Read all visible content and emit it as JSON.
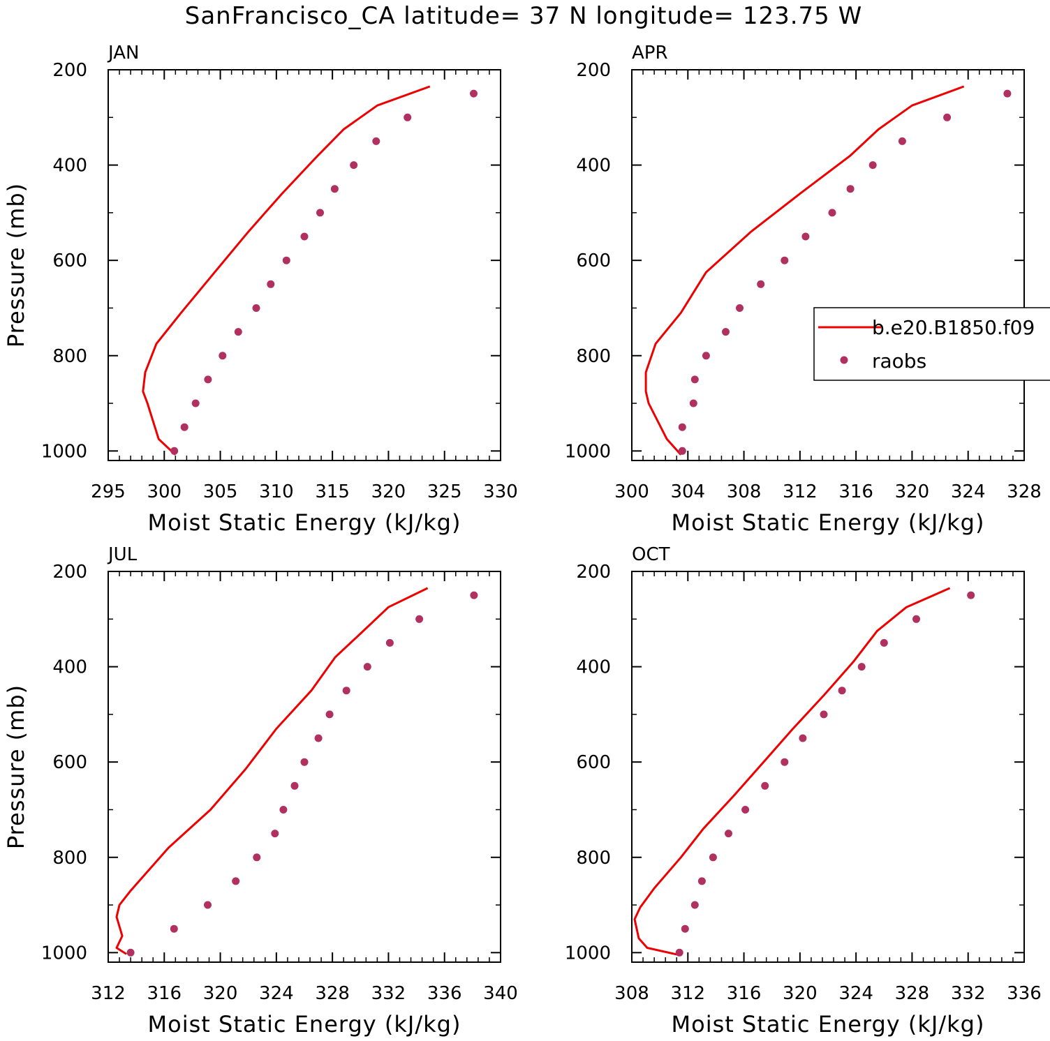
{
  "title": "SanFrancisco_CA  latitude= 37 N longitude= 123.75 W",
  "colors": {
    "model": "#ee0000",
    "raobs": "#b03060"
  },
  "legend": {
    "model_label": "b.e20.B1850.f09",
    "raobs_label": "raobs",
    "placement": "right-middle of APR panel"
  },
  "chart_data": [
    {
      "type": "line",
      "panel": "JAN",
      "xlabel": "Moist Static Energy (kJ/kg)",
      "ylabel": "Pressure (mb)",
      "xlim": [
        295,
        330
      ],
      "xticks": [
        295,
        300,
        305,
        310,
        315,
        320,
        325,
        330
      ],
      "ylim": [
        200,
        1020
      ],
      "yticks": [
        200,
        400,
        600,
        800,
        1000
      ],
      "y_inverted": true,
      "series": [
        {
          "kind": "line",
          "x": [
            323.7,
            319,
            316,
            313.7,
            310.5,
            307.5,
            304.5,
            301.5,
            299.3,
            298.3,
            298.1,
            298.5,
            299.5,
            301
          ],
          "y": [
            235,
            275,
            325,
            380,
            460,
            540,
            625,
            710,
            775,
            835,
            875,
            900,
            975,
            1008
          ]
        },
        {
          "kind": "scatter",
          "x": [
            327.6,
            321.7,
            318.9,
            316.9,
            315.2,
            313.9,
            312.5,
            310.9,
            309.5,
            308.2,
            306.6,
            305.2,
            303.9,
            302.8,
            301.8,
            300.9
          ],
          "y": [
            250,
            300,
            350,
            400,
            450,
            500,
            550,
            600,
            650,
            700,
            750,
            800,
            850,
            900,
            950,
            1000
          ]
        }
      ]
    },
    {
      "type": "line",
      "panel": "APR",
      "xlabel": "Moist Static Energy (kJ/kg)",
      "ylabel": "",
      "xlim": [
        300,
        328
      ],
      "xticks": [
        300,
        304,
        308,
        312,
        316,
        320,
        324,
        328
      ],
      "ylim": [
        200,
        1020
      ],
      "yticks": [
        200,
        400,
        600,
        800,
        1000
      ],
      "y_inverted": true,
      "series": [
        {
          "kind": "line",
          "x": [
            323.7,
            320,
            317.6,
            315.6,
            312,
            308.5,
            305.3,
            303.5,
            301.7,
            301,
            301,
            301.2,
            302.5,
            303.5
          ],
          "y": [
            235,
            275,
            325,
            380,
            460,
            540,
            625,
            710,
            775,
            835,
            875,
            900,
            975,
            1008
          ]
        },
        {
          "kind": "scatter",
          "x": [
            326.8,
            322.5,
            319.3,
            317.2,
            315.6,
            314.3,
            312.4,
            310.9,
            309.2,
            307.7,
            306.7,
            305.3,
            304.5,
            304.4,
            303.6,
            303.6
          ],
          "y": [
            250,
            300,
            350,
            400,
            450,
            500,
            550,
            600,
            650,
            700,
            750,
            800,
            850,
            900,
            950,
            1000
          ]
        }
      ]
    },
    {
      "type": "line",
      "panel": "JUL",
      "xlabel": "Moist Static Energy (kJ/kg)",
      "ylabel": "Pressure (mb)",
      "xlim": [
        312,
        340
      ],
      "xticks": [
        312,
        316,
        320,
        324,
        328,
        332,
        336,
        340
      ],
      "ylim": [
        200,
        1020
      ],
      "yticks": [
        200,
        400,
        600,
        800,
        1000
      ],
      "y_inverted": true,
      "series": [
        {
          "kind": "line",
          "x": [
            334.8,
            332,
            330.2,
            328.2,
            326.5,
            324,
            321.8,
            319.3,
            316.3,
            313.6,
            312.8,
            312.6,
            313,
            312.6,
            313.3
          ],
          "y": [
            235,
            275,
            325,
            380,
            450,
            530,
            615,
            700,
            780,
            870,
            900,
            925,
            965,
            990,
            1003
          ]
        },
        {
          "kind": "scatter",
          "x": [
            338.1,
            334.2,
            332.1,
            330.5,
            329,
            327.8,
            327,
            326,
            325.3,
            324.5,
            323.9,
            322.6,
            321.1,
            319.1,
            316.7,
            313.6
          ],
          "y": [
            250,
            300,
            350,
            400,
            450,
            500,
            550,
            600,
            650,
            700,
            750,
            800,
            850,
            900,
            950,
            1000
          ]
        }
      ]
    },
    {
      "type": "line",
      "panel": "OCT",
      "xlabel": "Moist Static Energy (kJ/kg)",
      "ylabel": "",
      "xlim": [
        308,
        336
      ],
      "xticks": [
        308,
        312,
        316,
        320,
        324,
        328,
        332,
        336
      ],
      "ylim": [
        200,
        1020
      ],
      "yticks": [
        200,
        400,
        600,
        800,
        1000
      ],
      "y_inverted": true,
      "series": [
        {
          "kind": "line",
          "x": [
            330.7,
            327.6,
            325.5,
            323.8,
            321.7,
            319.5,
            317.4,
            315.3,
            313.1,
            311.5,
            309.6,
            308.6,
            308.2,
            308.5,
            309.1,
            311.4
          ],
          "y": [
            235,
            275,
            325,
            390,
            460,
            530,
            600,
            670,
            740,
            800,
            865,
            905,
            930,
            970,
            990,
            1005
          ]
        },
        {
          "kind": "scatter",
          "x": [
            332.2,
            328.3,
            326,
            324.4,
            323,
            321.7,
            320.2,
            318.9,
            317.5,
            316.1,
            314.9,
            313.8,
            313,
            312.5,
            311.8,
            311.4
          ],
          "y": [
            250,
            300,
            350,
            400,
            450,
            500,
            550,
            600,
            650,
            700,
            750,
            800,
            850,
            900,
            950,
            1000
          ]
        }
      ]
    }
  ]
}
